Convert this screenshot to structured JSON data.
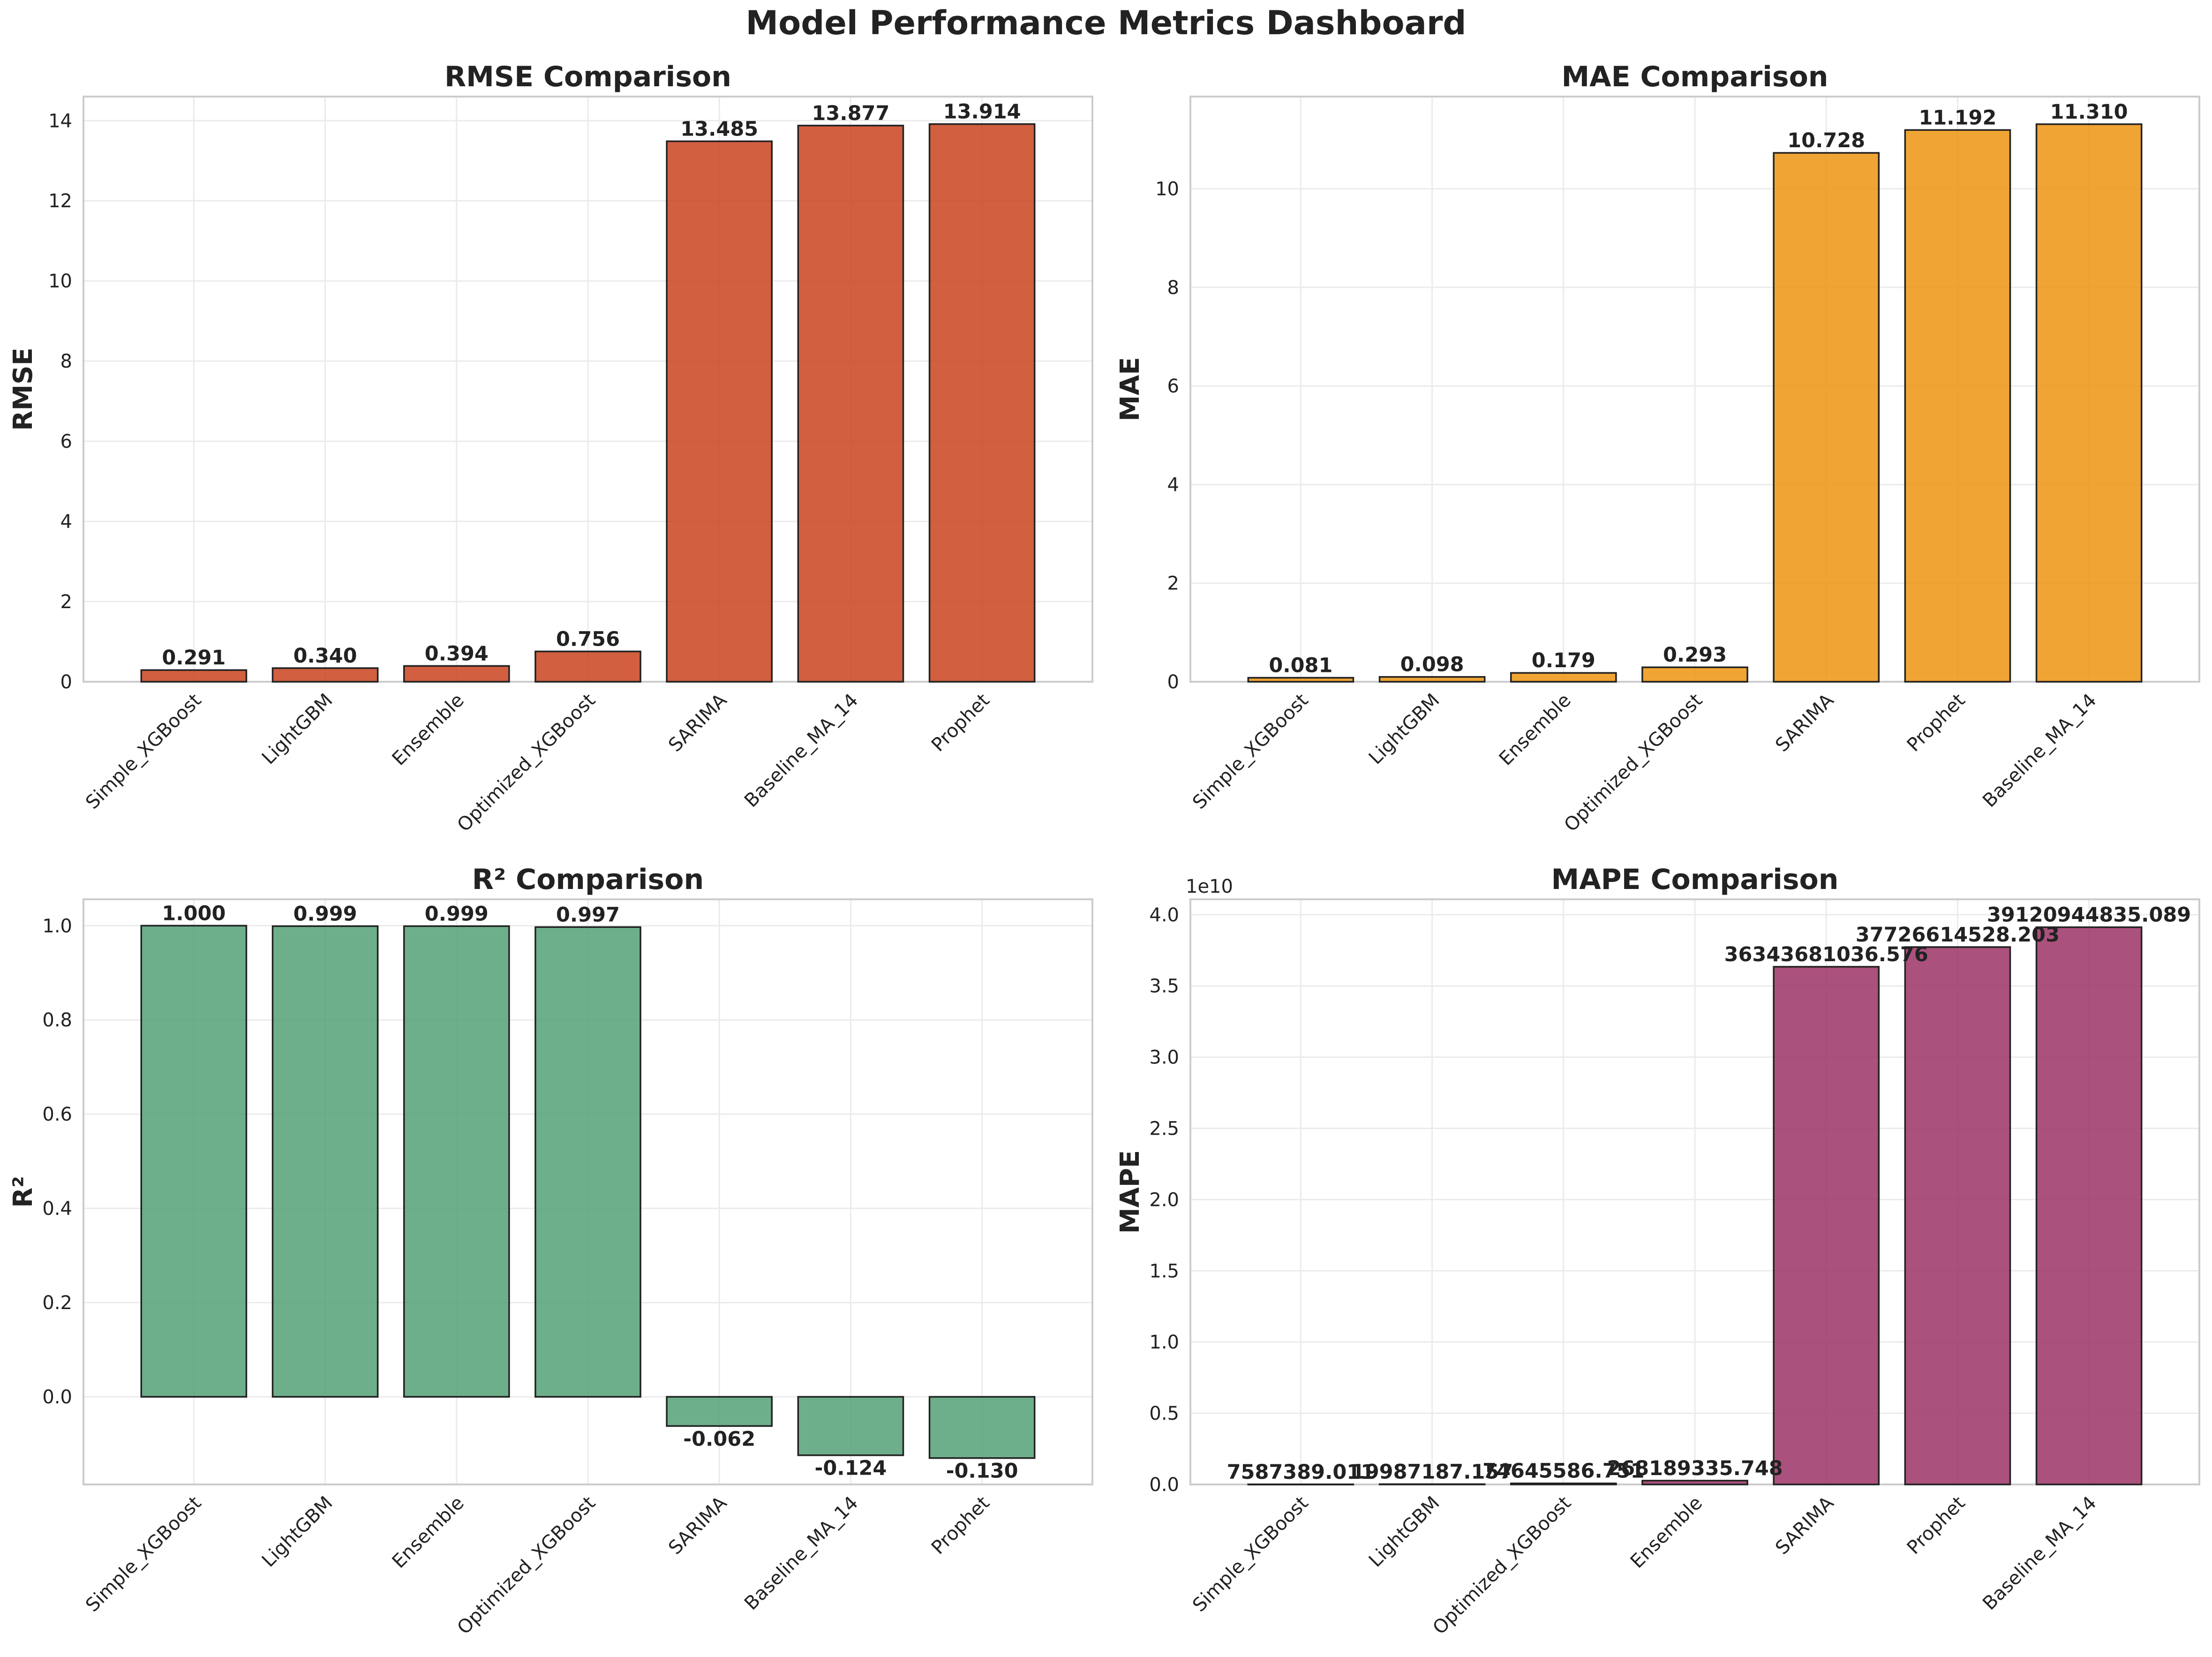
{
  "suptitle": "Model Performance Metrics Dashboard",
  "chart_data": [
    {
      "type": "bar",
      "title": "RMSE Comparison",
      "xlabel": "",
      "ylabel": "RMSE",
      "categories": [
        "Simple_XGBoost",
        "LightGBM",
        "Ensemble",
        "Optimized_XGBoost",
        "SARIMA",
        "Baseline_MA_14",
        "Prophet"
      ],
      "values": [
        0.291,
        0.34,
        0.394,
        0.756,
        13.485,
        13.877,
        13.914
      ],
      "value_labels": [
        "0.291",
        "0.340",
        "0.394",
        "0.756",
        "13.485",
        "13.877",
        "13.914"
      ],
      "ylim": [
        0,
        14.6
      ],
      "yticks": [
        0,
        2,
        4,
        6,
        8,
        10,
        12,
        14
      ],
      "ytick_labels": [
        "0",
        "2",
        "4",
        "6",
        "8",
        "10",
        "12",
        "14"
      ],
      "color": "#C9431F",
      "grid": true
    },
    {
      "type": "bar",
      "title": "MAE Comparison",
      "xlabel": "",
      "ylabel": "MAE",
      "categories": [
        "Simple_XGBoost",
        "LightGBM",
        "Ensemble",
        "Optimized_XGBoost",
        "SARIMA",
        "Prophet",
        "Baseline_MA_14"
      ],
      "values": [
        0.081,
        0.098,
        0.179,
        0.293,
        10.728,
        11.192,
        11.31
      ],
      "value_labels": [
        "0.081",
        "0.098",
        "0.179",
        "0.293",
        "10.728",
        "11.192",
        "11.310"
      ],
      "ylim": [
        0,
        11.87
      ],
      "yticks": [
        0,
        2,
        4,
        6,
        8,
        10
      ],
      "ytick_labels": [
        "0",
        "2",
        "4",
        "6",
        "8",
        "10"
      ],
      "color": "#EC9411",
      "grid": true
    },
    {
      "type": "bar",
      "title": "R² Comparison",
      "xlabel": "",
      "ylabel": "R²",
      "categories": [
        "Simple_XGBoost",
        "LightGBM",
        "Ensemble",
        "Optimized_XGBoost",
        "SARIMA",
        "Baseline_MA_14",
        "Prophet"
      ],
      "values": [
        1.0,
        0.999,
        0.999,
        0.997,
        -0.062,
        -0.124,
        -0.13
      ],
      "value_labels": [
        "1.000",
        "0.999",
        "0.999",
        "0.997",
        "-0.062",
        "-0.124",
        "-0.130"
      ],
      "ylim": [
        -0.186,
        1.056
      ],
      "yticks": [
        0,
        0.2,
        0.4,
        0.6,
        0.8,
        1.0
      ],
      "ytick_labels": [
        "0.0",
        "0.2",
        "0.4",
        "0.6",
        "0.8",
        "1.0"
      ],
      "color": "#54A175",
      "grid": true
    },
    {
      "type": "bar",
      "title": "MAPE Comparison",
      "xlabel": "",
      "ylabel": "MAPE",
      "categories": [
        "Simple_XGBoost",
        "LightGBM",
        "Optimized_XGBoost",
        "Ensemble",
        "SARIMA",
        "Prophet",
        "Baseline_MA_14"
      ],
      "values": [
        7587389.011,
        19987187.157,
        74645586.751,
        268189335.748,
        36343681036.576,
        37726614528.203,
        39120944835.089
      ],
      "value_labels": [
        "7587389.011",
        "19987187.157",
        "74645586.751",
        "268189335.748",
        "36343681036.576",
        "37726614528.203",
        "39120944835.089"
      ],
      "ylim": [
        0,
        41080000000
      ],
      "yticks": [
        0,
        5000000000,
        10000000000,
        15000000000,
        20000000000,
        25000000000,
        30000000000,
        35000000000,
        40000000000
      ],
      "ytick_labels": [
        "0.0",
        "0.5",
        "1.0",
        "1.5",
        "2.0",
        "2.5",
        "3.0",
        "3.5",
        "4.0"
      ],
      "offset_label": "1e10",
      "color": "#9C3366",
      "grid": true
    }
  ]
}
